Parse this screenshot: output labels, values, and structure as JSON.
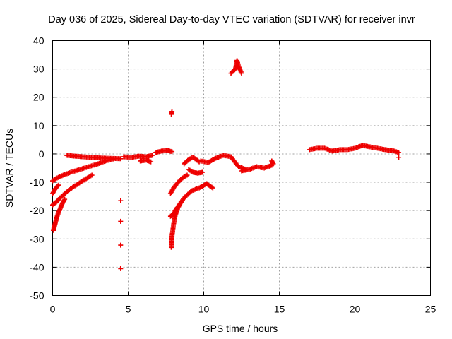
{
  "chart_data": {
    "type": "scatter",
    "title": "Day 036 of 2025, Sidereal Day-to-day VTEC variation (SDTVAR) for receiver invr",
    "xlabel": "GPS time / hours",
    "ylabel": "SDTVAR / TECUs",
    "xlim": [
      0,
      25
    ],
    "ylim": [
      -50,
      40
    ],
    "xticks": [
      "0",
      "5",
      "10",
      "15",
      "20",
      "25"
    ],
    "yticks": [
      "40",
      "30",
      "20",
      "10",
      "0",
      "-10",
      "-20",
      "-30",
      "-40",
      "-50"
    ],
    "grid": true,
    "marker": "+",
    "color": "#ee0000",
    "segments": [
      {
        "x": [
          0.9,
          1.5,
          2.0,
          2.5,
          3.0,
          3.5,
          4.0,
          4.5
        ],
        "y": [
          -0.5,
          -0.8,
          -1.0,
          -1.2,
          -1.4,
          -1.5,
          -1.6,
          -1.7
        ]
      },
      {
        "x": [
          0.0,
          0.3,
          0.7,
          1.2,
          1.8,
          2.4,
          3.0,
          3.5,
          4.0
        ],
        "y": [
          -9.5,
          -8.5,
          -7.5,
          -6.5,
          -5.5,
          -4.5,
          -3.5,
          -2.5,
          -1.8
        ]
      },
      {
        "x": [
          0.0,
          0.15,
          0.3,
          0.4
        ],
        "y": [
          -14,
          -12.5,
          -11.5,
          -11
        ]
      },
      {
        "x": [
          0.0,
          0.1,
          0.25,
          0.5,
          0.9,
          1.4,
          2.0,
          2.6
        ],
        "y": [
          -18,
          -17.5,
          -17,
          -15.5,
          -13.5,
          -11.5,
          -9.5,
          -7.5
        ]
      },
      {
        "x": [
          0.05,
          0.12,
          0.2,
          0.3,
          0.45,
          0.6,
          0.8
        ],
        "y": [
          -27,
          -25.5,
          -24,
          -22,
          -20,
          -18,
          -16
        ]
      },
      {
        "x": [
          4.5,
          4.5,
          4.5,
          4.5
        ],
        "y": [
          -16.5,
          -23.8,
          -32.2,
          -40.5
        ]
      },
      {
        "x": [
          4.7,
          5.2,
          5.7,
          6.2,
          6.6
        ],
        "y": [
          -1.0,
          -1.2,
          -0.8,
          -1.0,
          -0.5
        ]
      },
      {
        "x": [
          5.8,
          6.2,
          6.5
        ],
        "y": [
          -2.5,
          -2.2,
          -2.8
        ]
      },
      {
        "x": [
          6.8,
          7.2,
          7.6,
          7.9
        ],
        "y": [
          0.5,
          1.0,
          1.2,
          0.8
        ]
      },
      {
        "x": [
          7.85,
          7.9
        ],
        "y": [
          14.0,
          15.0
        ]
      },
      {
        "x": [
          7.8,
          8.0,
          8.3,
          8.6,
          8.9
        ],
        "y": [
          -14,
          -12,
          -10,
          -8.5,
          -7.5
        ]
      },
      {
        "x": [
          7.8,
          8.0,
          8.3,
          8.7,
          9.2,
          9.7,
          10.2,
          10.6
        ],
        "y": [
          -22,
          -21,
          -18.5,
          -15.5,
          -13,
          -12,
          -10.5,
          -12
        ]
      },
      {
        "x": [
          7.85,
          7.9,
          8.0,
          8.1,
          8.3,
          8.5
        ],
        "y": [
          -33,
          -29,
          -25,
          -22,
          -19,
          -17
        ]
      },
      {
        "x": [
          8.7,
          9.0,
          9.3,
          9.7
        ],
        "y": [
          -3.5,
          -2.0,
          -1.2,
          -2.8
        ]
      },
      {
        "x": [
          9.0,
          9.3,
          9.6,
          9.9
        ],
        "y": [
          -5.5,
          -6.5,
          -6.8,
          -6.5
        ]
      },
      {
        "x": [
          9.8,
          10.3,
          10.8,
          11.3,
          11.8,
          12.3,
          12.8
        ],
        "y": [
          -2.5,
          -3.0,
          -1.5,
          -0.5,
          -1.0,
          -4.5,
          -5.5
        ]
      },
      {
        "x": [
          11.8,
          12.1,
          12.2,
          12.3,
          12.5
        ],
        "y": [
          28.5,
          30.0,
          33.0,
          31.0,
          28.5
        ]
      },
      {
        "x": [
          12.5,
          13.0,
          13.5,
          14.0,
          14.5
        ],
        "y": [
          -6.0,
          -5.5,
          -4.5,
          -5.0,
          -4.0
        ]
      },
      {
        "x": [
          14.5,
          14.6
        ],
        "y": [
          -2.5,
          -3.5
        ]
      },
      {
        "x": [
          17.0,
          17.5,
          18.0,
          18.5,
          19.0,
          19.5,
          20.0,
          20.5,
          21.0,
          21.5,
          22.0,
          22.5,
          22.9
        ],
        "y": [
          1.5,
          2.0,
          2.0,
          1.0,
          1.5,
          1.5,
          2.0,
          3.0,
          2.5,
          2.0,
          1.5,
          1.2,
          0.5
        ]
      },
      {
        "x": [
          22.9
        ],
        "y": [
          -1.2
        ]
      }
    ]
  }
}
